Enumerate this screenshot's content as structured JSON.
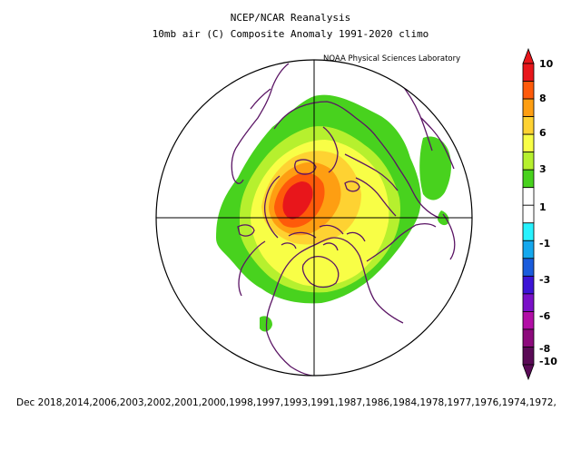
{
  "title": {
    "line1": "NCEP/NCAR Reanalysis",
    "line2": "10mb air (C) Composite Anomaly 1991-2020 climo"
  },
  "credit": "NOAA Physical Sciences Laboratory",
  "footer": "Dec 2018,2014,2006,2003,2002,2001,2000,1998,1997,1993,1991,1987,1986,1984,1978,1977,1976,1974,1972,",
  "colorbar": {
    "ticks": [
      "10",
      "8",
      "6",
      "3",
      "1",
      "-1",
      "-3",
      "-6",
      "-8",
      "-10"
    ],
    "bins": [
      {
        "color": "#e8161b"
      },
      {
        "color": "#fe5a0a"
      },
      {
        "color": "#fe9e12"
      },
      {
        "color": "#fed232"
      },
      {
        "color": "#f8fe46"
      },
      {
        "color": "#b6f02e"
      },
      {
        "color": "#48d21e"
      },
      {
        "color": "#ffffff"
      },
      {
        "color": "#ffffff"
      },
      {
        "color": "#28f2fe"
      },
      {
        "color": "#14a8ee"
      },
      {
        "color": "#1a5cdc"
      },
      {
        "color": "#3c14d6"
      },
      {
        "color": "#7a10c8"
      },
      {
        "color": "#b20ea6"
      },
      {
        "color": "#8c0a7c"
      },
      {
        "color": "#5a0a56"
      }
    ]
  },
  "map": {
    "projection": "polar stereographic, North Pole",
    "outline_color": "#5a1464",
    "shading_levels": [
      {
        "min": 1,
        "max": 3,
        "color": "#48d21e"
      },
      {
        "min": 3,
        "max": 4,
        "color": "#b6f02e"
      },
      {
        "min": 4,
        "max": 6,
        "color": "#f8fe46"
      },
      {
        "min": 6,
        "max": 8,
        "color": "#fed232"
      },
      {
        "min": 8,
        "max": 9,
        "color": "#fe9e12"
      },
      {
        "min": 9,
        "max": 10,
        "color": "#fe5a0a"
      },
      {
        "min": 10,
        "max": 12,
        "color": "#e8161b"
      }
    ]
  }
}
